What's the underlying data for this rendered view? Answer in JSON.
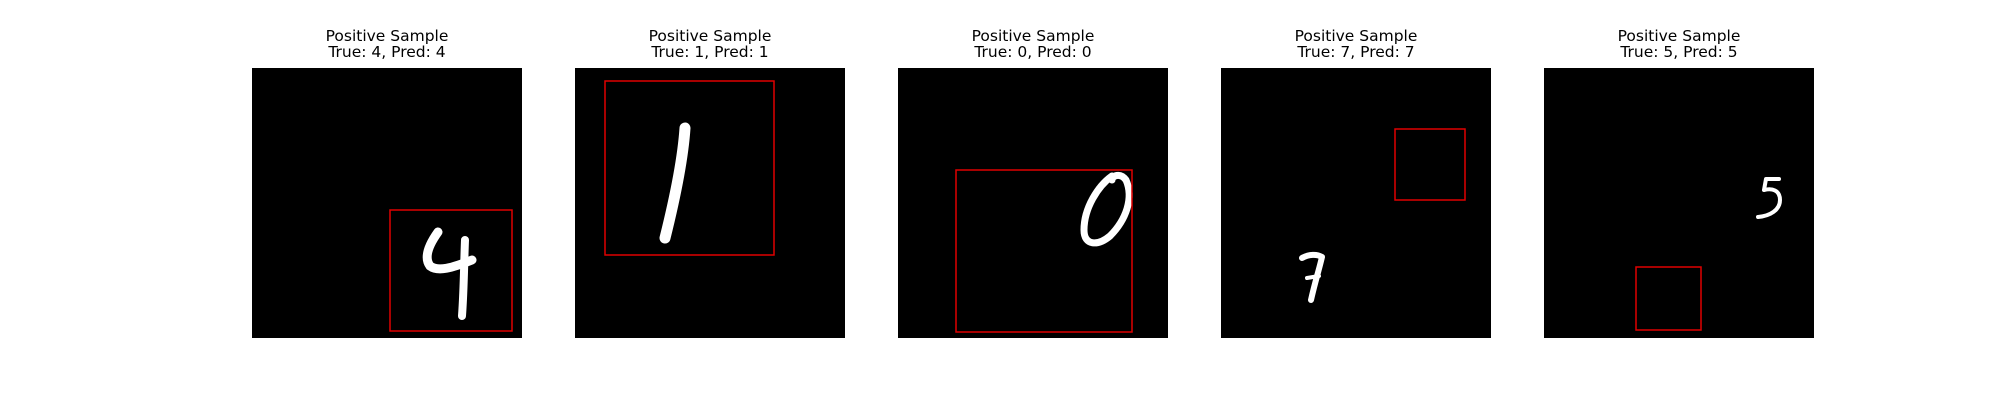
{
  "figure": {
    "panels": [
      {
        "title": "Positive Sample",
        "subtitle": "True: 4, Pred: 4",
        "digit": "4",
        "box_color": "#e00000"
      },
      {
        "title": "Positive Sample",
        "subtitle": "True: 1, Pred: 1",
        "digit": "1",
        "box_color": "#e00000"
      },
      {
        "title": "Positive Sample",
        "subtitle": "True: 0, Pred: 0",
        "digit": "0",
        "box_color": "#e00000"
      },
      {
        "title": "Positive Sample",
        "subtitle": "True: 7, Pred: 7",
        "digit": "7",
        "box_color": "#e00000"
      },
      {
        "title": "Positive Sample",
        "subtitle": "True: 5, Pred: 5",
        "digit": "5",
        "box_color": "#e00000"
      }
    ]
  }
}
